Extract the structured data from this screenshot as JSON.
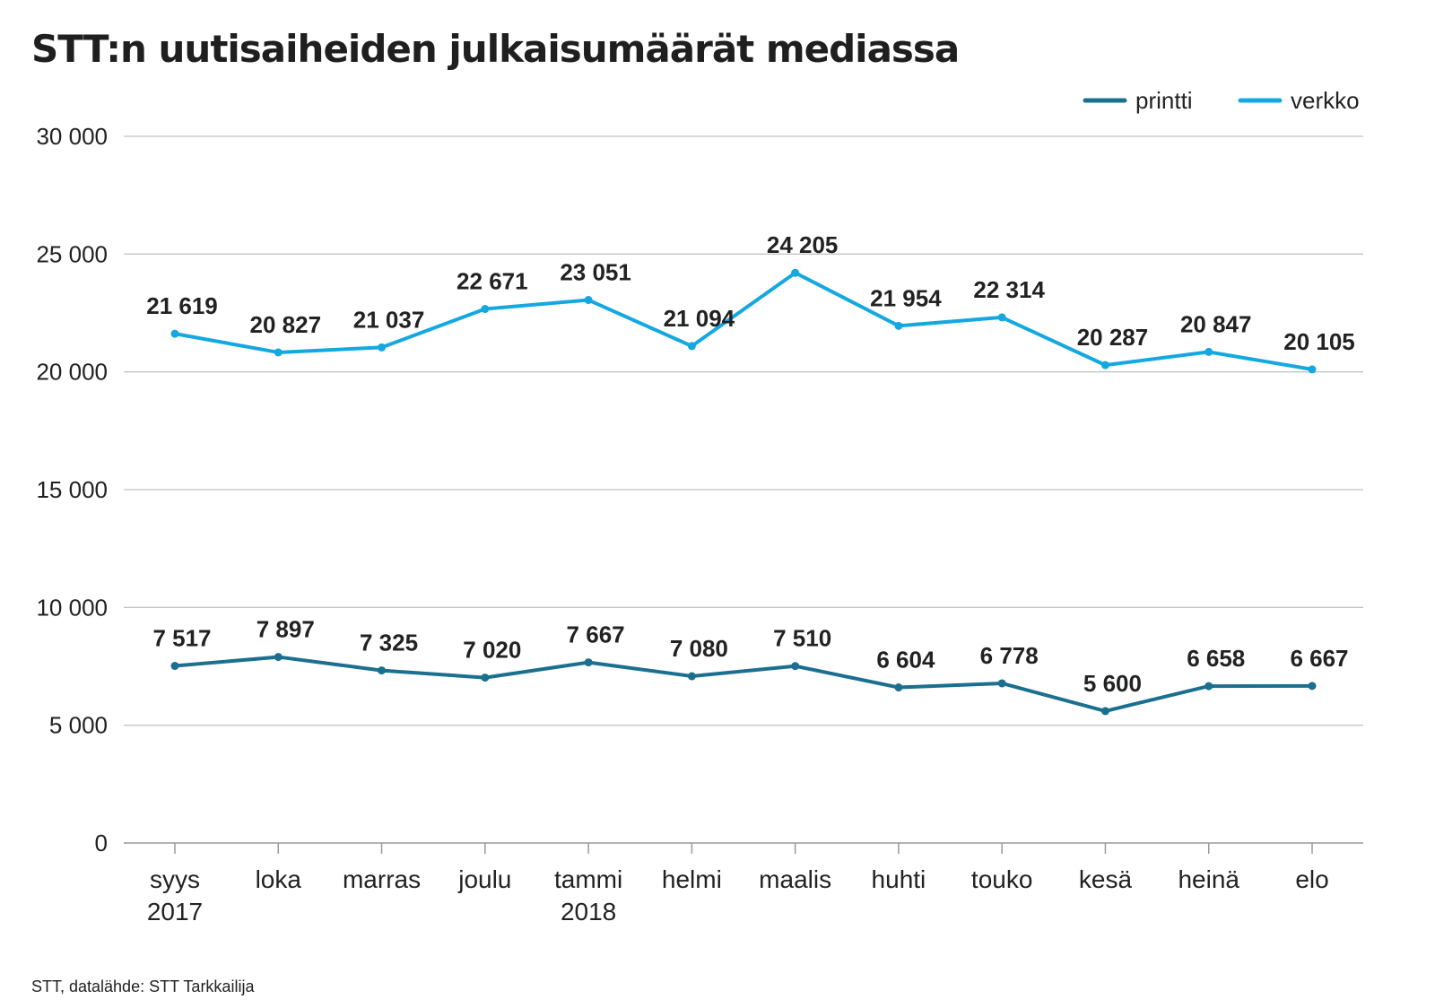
{
  "title": "STT:n uutisaiheiden julkaisumäärät mediassa",
  "source": "STT, datalähde: STT Tarkkailija",
  "chart_data": {
    "type": "line",
    "title": "STT:n uutisaiheiden julkaisumäärät mediassa",
    "xlabel": "",
    "ylabel": "",
    "categories": [
      [
        "syys",
        "2017"
      ],
      [
        "loka"
      ],
      [
        "marras"
      ],
      [
        "joulu"
      ],
      [
        "tammi",
        "2018"
      ],
      [
        "helmi"
      ],
      [
        "maalis"
      ],
      [
        "huhti"
      ],
      [
        "touko"
      ],
      [
        "kesä"
      ],
      [
        "heinä"
      ],
      [
        "elo"
      ]
    ],
    "ylim": [
      0,
      30000
    ],
    "yticks": [
      0,
      5000,
      10000,
      15000,
      20000,
      25000,
      30000
    ],
    "ytick_labels": [
      "0",
      "5 000",
      "10 000",
      "15 000",
      "20 000",
      "25 000",
      "30 000"
    ],
    "grid": true,
    "legend_position": "top-right",
    "series": [
      {
        "name": "printti",
        "color": "#1b6f8f",
        "values": [
          7517,
          7897,
          7325,
          7020,
          7667,
          7080,
          7510,
          6604,
          6778,
          5600,
          6658,
          6667
        ],
        "labels": [
          "7 517",
          "7 897",
          "7 325",
          "7 020",
          "7 667",
          "7 080",
          "7 510",
          "6 604",
          "6 778",
          "5 600",
          "6 658",
          "6 667"
        ]
      },
      {
        "name": "verkko",
        "color": "#14a8e0",
        "values": [
          21619,
          20827,
          21037,
          22671,
          23051,
          21094,
          24205,
          21954,
          22314,
          20287,
          20847,
          20105
        ],
        "labels": [
          "21 619",
          "20 827",
          "21 037",
          "22 671",
          "23 051",
          "21 094",
          "24 205",
          "21 954",
          "22 314",
          "20 287",
          "20 847",
          "20 105"
        ]
      }
    ]
  }
}
